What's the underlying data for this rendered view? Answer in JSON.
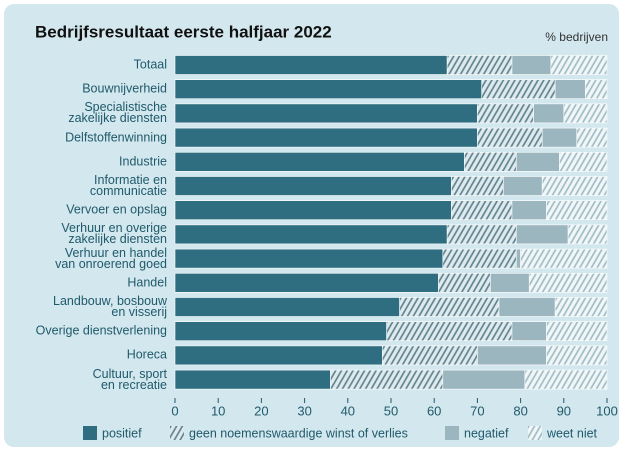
{
  "chart_data": {
    "type": "stacked_barh",
    "title": "Bedrijfsresultaat eerste halfjaar 2022",
    "unit_label": "% bedrijven",
    "categories": [
      "Totaal",
      "Bouwnijverheid",
      "Specialistische\nzakelijke diensten",
      "Delfstoffenwinning",
      "Industrie",
      "Informatie en\ncommunicatie",
      "Vervoer en opslag",
      "Verhuur en overige\nzakelijke diensten",
      "Verhuur en handel\nvan onroerend goed",
      "Handel",
      "Landbouw, bosbouw\nen visserij",
      "Overige dienstverlening",
      "Horeca",
      "Cultuur, sport\nen recreatie"
    ],
    "series": [
      {
        "name": "positief",
        "color": "#2e6e80",
        "hatch": false,
        "values": [
          63,
          71,
          70,
          70,
          67,
          64,
          64,
          63,
          62,
          61,
          52,
          49,
          48,
          36
        ]
      },
      {
        "name": "geen noemenswaardige winst of verlies",
        "color": "#5a7f8b",
        "hatch": true,
        "values": [
          15,
          17,
          13,
          15,
          12,
          12,
          14,
          16,
          17,
          12,
          23,
          29,
          22,
          26
        ]
      },
      {
        "name": "negatief",
        "color": "#9bb6be",
        "hatch": false,
        "values": [
          9,
          7,
          7,
          8,
          10,
          9,
          8,
          12,
          1,
          9,
          13,
          8,
          16,
          19
        ]
      },
      {
        "name": "weet niet",
        "color": "#9cbac3",
        "hatch": true,
        "values": [
          13,
          5,
          10,
          7,
          11,
          15,
          14,
          9,
          20,
          18,
          12,
          14,
          14,
          19
        ]
      }
    ],
    "xlim": [
      0,
      100
    ],
    "xticks": [
      0,
      10,
      20,
      30,
      40,
      50,
      60,
      70,
      80,
      90,
      100
    ],
    "grid": false,
    "legend": "bottom"
  }
}
